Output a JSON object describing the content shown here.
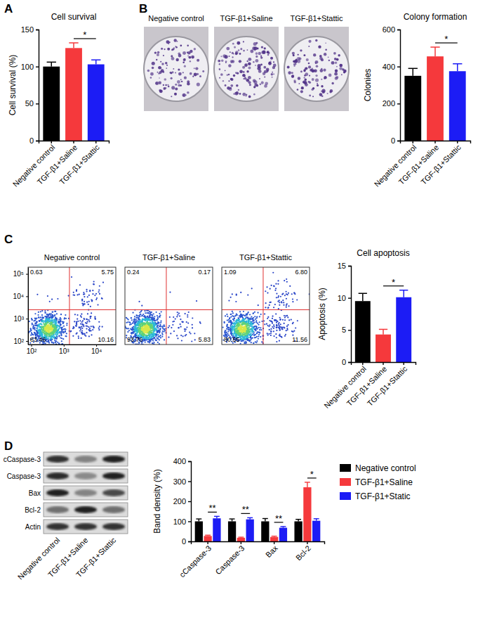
{
  "panel_labels": [
    "A",
    "B",
    "C",
    "D"
  ],
  "colony_plates": [
    "Negative control",
    "TGF-β1+Saline",
    "TGF-β1+Stattic"
  ],
  "flow_plots": {
    "log": true,
    "xlim": [
      80,
      40000
    ],
    "ylim": [
      70,
      200000
    ],
    "xticks": [
      {
        "value": 100,
        "label": "10²"
      },
      {
        "value": 1000,
        "label": "10³"
      },
      {
        "value": 10000,
        "label": "10⁴"
      }
    ],
    "yticks": [
      {
        "value": 100,
        "label": "10²"
      },
      {
        "value": 1000,
        "label": "10³"
      },
      {
        "value": 10000,
        "label": "10⁴"
      },
      {
        "value": 100000,
        "label": "10⁵"
      }
    ],
    "gate_x": 1500,
    "gate_y": 2500,
    "plots": [
      {
        "title": "Negative control",
        "upper_left": 0.63,
        "upper_right": 5.75,
        "lower_left": 83.46,
        "lower_right": 10.16
      },
      {
        "title": "TGF-β1+Saline",
        "upper_left": 0.24,
        "upper_right": 0.17,
        "lower_left": 93.76,
        "lower_right": 5.83
      },
      {
        "title": "TGF-β1+Stattic",
        "upper_left": 1.09,
        "upper_right": 6.8,
        "lower_left": 80.55,
        "lower_right": 11.56
      }
    ]
  },
  "western_blot": {
    "rows": [
      "cCaspase-3",
      "Caspase-3",
      "Bax",
      "Bcl-2",
      "Actin"
    ],
    "lanes": [
      "Negative control",
      "TGF-β1+Saline",
      "TGF-β1+Stattic"
    ]
  },
  "chart_data": [
    {
      "type": "bar",
      "title": "Cell survival",
      "y_label": "Cell survival (%)",
      "categories": [
        "Negative control",
        "TGF-β1+Saline",
        "TGF-β1+Stattic"
      ],
      "values": [
        100,
        125,
        103
      ],
      "errors": [
        6,
        7,
        6
      ],
      "colors": [
        "#000000",
        "#f5393c",
        "#1c1cf5"
      ],
      "ylim": [
        0,
        150
      ],
      "yticks": [
        0,
        50,
        100,
        150
      ],
      "annotations": [
        {
          "between": [
            "TGF-β1+Saline",
            "TGF-β1+Stattic"
          ],
          "label": "*"
        }
      ]
    },
    {
      "type": "bar",
      "title": "Colony formation",
      "y_label": "Colonies",
      "categories": [
        "Negative control",
        "TGF-β1+Saline",
        "TGF-β1+Stattic"
      ],
      "values": [
        350,
        455,
        375
      ],
      "errors": [
        40,
        50,
        40
      ],
      "colors": [
        "#000000",
        "#f5393c",
        "#1c1cf5"
      ],
      "ylim": [
        0,
        600
      ],
      "yticks": [
        0,
        200,
        400,
        600
      ],
      "annotations": [
        {
          "between": [
            "TGF-β1+Saline",
            "TGF-β1+Stattic"
          ],
          "label": "*"
        }
      ]
    },
    {
      "type": "bar",
      "title": "Cell apoptosis",
      "y_label": "Apoptosis (%)",
      "categories": [
        "Negative control",
        "TGF-β1+Saline",
        "TGF-β1+Stattic"
      ],
      "values": [
        9.5,
        4.3,
        10.1
      ],
      "errors": [
        1.2,
        0.8,
        1.1
      ],
      "colors": [
        "#000000",
        "#f5393c",
        "#1c1cf5"
      ],
      "ylim": [
        0,
        15
      ],
      "yticks": [
        0,
        5,
        10,
        15
      ],
      "annotations": [
        {
          "between": [
            "TGF-β1+Saline",
            "TGF-β1+Stattic"
          ],
          "label": "*"
        }
      ]
    },
    {
      "type": "bar",
      "y_label": "Band density (%)",
      "legend": "right",
      "categories": [
        "cCaspase-3",
        "Caspase-3",
        "Bax",
        "Bcl-2"
      ],
      "series": [
        {
          "name": "Negative control",
          "color": "#000000",
          "values": [
            100,
            100,
            100,
            100
          ],
          "errors": [
            12,
            12,
            14,
            10
          ]
        },
        {
          "name": "TGF-β1+Saline",
          "color": "#f5393c",
          "values": [
            27,
            18,
            22,
            270
          ],
          "errors": [
            4,
            3,
            4,
            25
          ]
        },
        {
          "name": "TGF-β1+Static",
          "color": "#1c1cf5",
          "values": [
            115,
            110,
            68,
            103
          ],
          "errors": [
            10,
            8,
            6,
            10
          ]
        }
      ],
      "ylim": [
        0,
        400
      ],
      "yticks": [
        0,
        100,
        200,
        300,
        400
      ],
      "annotations": [
        {
          "category": "cCaspase-3",
          "between": [
            "TGF-β1+Saline",
            "TGF-β1+Static"
          ],
          "label": "**"
        },
        {
          "category": "Caspase-3",
          "between": [
            "TGF-β1+Saline",
            "TGF-β1+Static"
          ],
          "label": "**"
        },
        {
          "category": "Bax",
          "between": [
            "TGF-β1+Saline",
            "TGF-β1+Static"
          ],
          "label": "**"
        },
        {
          "category": "Bcl-2",
          "between": [
            "TGF-β1+Saline",
            "TGF-β1+Static"
          ],
          "label": "*"
        }
      ]
    }
  ]
}
